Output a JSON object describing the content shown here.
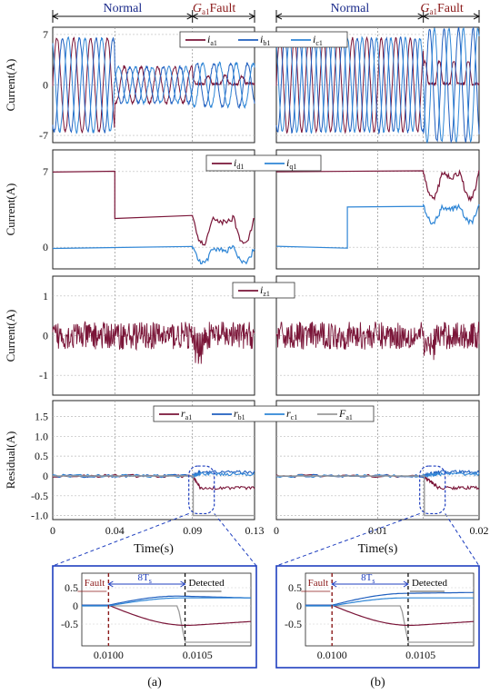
{
  "colors": {
    "a": "#7a1538",
    "b": "#1f5fbf",
    "c": "#2f86d6",
    "f": "#9a9a9a",
    "normal": "#1a2a8a",
    "fault": "#8b1a1a",
    "zoom_border": "#1f3fbf"
  },
  "headers": {
    "normal": "Normal",
    "fault_sym": "G",
    "fault_sub": "a1",
    "fault_word": "Fault"
  },
  "legends": {
    "abc": [
      {
        "sym": "i",
        "sub": "a1",
        "color_key": "a"
      },
      {
        "sym": "i",
        "sub": "b1",
        "color_key": "b"
      },
      {
        "sym": "i",
        "sub": "c1",
        "color_key": "c"
      }
    ],
    "dq": [
      {
        "sym": "i",
        "sub": "d1",
        "color_key": "a"
      },
      {
        "sym": "i",
        "sub": "q1",
        "color_key": "c"
      }
    ],
    "z": [
      {
        "sym": "i",
        "sub": "z1",
        "color_key": "a"
      }
    ],
    "res": [
      {
        "sym": "r",
        "sub": "a1",
        "color_key": "a"
      },
      {
        "sym": "r",
        "sub": "b1",
        "color_key": "b"
      },
      {
        "sym": "r",
        "sub": "c1",
        "color_key": "c"
      },
      {
        "sym": "F",
        "sub": "a1",
        "color_key": "f"
      }
    ]
  },
  "y_axis_labels": {
    "current": "Current(A)",
    "residual": "Residual(A)"
  },
  "x_axis_label": "Time(s)",
  "captions": {
    "a": "(a)",
    "b": "(b)"
  },
  "zoom": {
    "fault_label": "Fault",
    "detected_label": "Detected",
    "interval_label": "8T",
    "interval_sub": "s"
  },
  "chart_data": [
    {
      "id": "a_phase_currents",
      "type": "line",
      "ylabel": "Current(A)",
      "ylim": [
        -8,
        8
      ],
      "yticks": [
        -7,
        0,
        7
      ],
      "xlim": [
        0,
        0.13
      ],
      "grid": true,
      "events": {
        "load_step_x": 0.04,
        "fault_x": 0.09
      },
      "series": [
        {
          "name": "ia1",
          "amplitude_normal": 6.5,
          "amplitude_after_step": 2.5
        },
        {
          "name": "ib1",
          "amplitude_normal": 6.5,
          "amplitude_after_step": 2.5
        },
        {
          "name": "ic1",
          "amplitude_normal": 6.5,
          "amplitude_after_step": 2.5
        }
      ]
    },
    {
      "id": "a_dq_currents",
      "type": "line",
      "ylabel": "Current(A)",
      "ylim": [
        -2,
        9
      ],
      "yticks": [
        0,
        7
      ],
      "xlim": [
        0,
        0.13
      ],
      "grid": true,
      "series": [
        {
          "name": "id1",
          "x": [
            0,
            0.04,
            0.04,
            0.09
          ],
          "y": [
            7,
            7,
            2.8,
            2.8
          ]
        },
        {
          "name": "iq1",
          "x": [
            0,
            0.09
          ],
          "y": [
            0,
            0
          ]
        }
      ]
    },
    {
      "id": "a_zero_seq",
      "type": "line",
      "ylabel": "Current(A)",
      "ylim": [
        -1.5,
        1.5
      ],
      "yticks": [
        -1,
        0,
        1
      ],
      "xlim": [
        0,
        0.13
      ],
      "grid": true,
      "series": [
        {
          "name": "iz1",
          "mean": 0,
          "noise_amplitude": 0.35
        }
      ]
    },
    {
      "id": "a_residual",
      "type": "line",
      "ylabel": "Residual(A)",
      "ylim": [
        -1.1,
        1.9
      ],
      "yticks": [
        -1.0,
        -0.5,
        0,
        0.5,
        1.0,
        1.5
      ],
      "xlim": [
        0,
        0.13
      ],
      "xticks": [
        0,
        0.04,
        0.09,
        0.13
      ],
      "xlabel": "Time(s)",
      "grid": true,
      "series": [
        {
          "name": "ra1",
          "x": [
            0,
            0.09,
            0.095,
            0.13
          ],
          "y": [
            0,
            0,
            -0.3,
            -0.3
          ]
        },
        {
          "name": "rb1",
          "x": [
            0,
            0.09,
            0.095,
            0.13
          ],
          "y": [
            0,
            0,
            0.1,
            0.1
          ]
        },
        {
          "name": "rc1",
          "x": [
            0,
            0.09,
            0.095,
            0.13
          ],
          "y": [
            0,
            0,
            0.05,
            0.05
          ]
        },
        {
          "name": "Fa1",
          "x": [
            0,
            0.0905,
            0.0905,
            0.13
          ],
          "y": [
            0,
            0,
            -1,
            -1
          ]
        }
      ]
    },
    {
      "id": "b_phase_currents",
      "type": "line",
      "ylabel": "Current(A)",
      "ylim": [
        -8,
        8
      ],
      "xlim": [
        0,
        0.02
      ],
      "grid": true,
      "events": {
        "fault_x": 0.0145
      },
      "series": [
        {
          "name": "ia1",
          "amplitude": 6.5
        },
        {
          "name": "ib1",
          "amplitude": 6.5
        },
        {
          "name": "ic1",
          "amplitude": 6.5
        }
      ]
    },
    {
      "id": "b_dq_currents",
      "type": "line",
      "ylabel": "Current(A)",
      "ylim": [
        -2,
        9
      ],
      "xlim": [
        0,
        0.02
      ],
      "grid": true,
      "series": [
        {
          "name": "id1",
          "x": [
            0,
            0.0145
          ],
          "y": [
            7,
            7
          ]
        },
        {
          "name": "iq1",
          "x": [
            0,
            0.007,
            0.007,
            0.0145
          ],
          "y": [
            0,
            0,
            3.8,
            3.8
          ]
        }
      ]
    },
    {
      "id": "b_zero_seq",
      "type": "line",
      "ylabel": "Current(A)",
      "ylim": [
        -1.5,
        1.5
      ],
      "xlim": [
        0,
        0.02
      ],
      "grid": true,
      "series": [
        {
          "name": "iz1",
          "mean": 0,
          "noise_amplitude": 0.35
        }
      ]
    },
    {
      "id": "b_residual",
      "type": "line",
      "ylabel": "Residual(A)",
      "ylim": [
        -1.1,
        1.9
      ],
      "xlim": [
        0,
        0.02
      ],
      "xticks": [
        0,
        0.01,
        0.02
      ],
      "xlabel": "Time(s)",
      "grid": true,
      "series": [
        {
          "name": "ra1",
          "x": [
            0,
            0.0145,
            0.016,
            0.02
          ],
          "y": [
            0,
            0,
            -0.3,
            -0.3
          ]
        },
        {
          "name": "rb1",
          "x": [
            0,
            0.0145,
            0.016,
            0.02
          ],
          "y": [
            0,
            0,
            0.1,
            0.1
          ]
        },
        {
          "name": "rc1",
          "x": [
            0,
            0.0145,
            0.016,
            0.02
          ],
          "y": [
            0,
            0,
            0.05,
            0.05
          ]
        },
        {
          "name": "Fa1",
          "x": [
            0,
            0.0146,
            0.0146,
            0.02
          ],
          "y": [
            0,
            0,
            -1,
            -1
          ]
        }
      ]
    },
    {
      "id": "a_zoom",
      "type": "line",
      "ylim": [
        -1.1,
        0.9
      ],
      "xlim": [
        0.00985,
        0.0108
      ],
      "yticks": [
        -0.5,
        0,
        0.5
      ],
      "xticks": [
        0.01,
        0.0105
      ],
      "xtick_labels": [
        "0.0100",
        "0.0105"
      ],
      "events": {
        "fault_x": 0.01,
        "detected_x": 0.01043
      }
    },
    {
      "id": "b_zoom",
      "type": "line",
      "ylim": [
        -1.1,
        0.9
      ],
      "xlim": [
        0.00985,
        0.0108
      ],
      "yticks": [
        -0.5,
        0,
        0.5
      ],
      "xticks": [
        0.01,
        0.0105
      ],
      "xtick_labels": [
        "0.0100",
        "0.0105"
      ],
      "events": {
        "fault_x": 0.01,
        "detected_x": 0.01043
      }
    }
  ]
}
